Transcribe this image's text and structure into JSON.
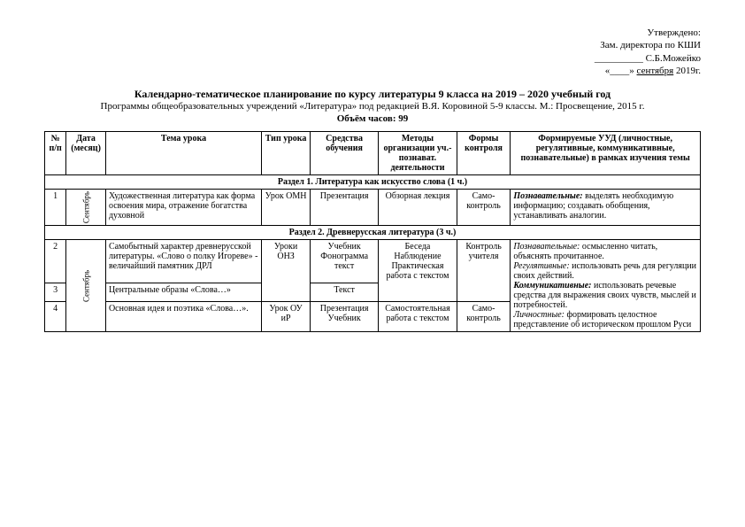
{
  "approval": {
    "l1": "Утверждено:",
    "l2": "Зам. директора по КШИ",
    "l3": "__________ С.Б.Можейко",
    "l4": "«____» сентября  2019г."
  },
  "title": {
    "main": "Календарно-тематическое планирование по курсу литературы 9 класса на 2019 – 2020 учебный год",
    "sub": "Программы общеобразовательных учреждений «Литература» под редакцией В.Я. Коровиной 5-9 классы. М.: Просвещение, 2015 г.",
    "hours": "Объём часов: 99"
  },
  "headers": {
    "num": "№ п/п",
    "date": "Дата (месяц)",
    "topic": "Тема урока",
    "type": "Тип урока",
    "means": "Средства обучения",
    "methods": "Методы организации уч.-познават. деятельности",
    "forms": "Формы контроля",
    "uud": "Формируемые УУД (личностные, регулятивные, коммуникативные, познавательные) в рамках изучения темы"
  },
  "sections": {
    "s1": "Раздел 1.  Литература как искусство слова (1 ч.)",
    "s2": "Раздел 2.  Древнерусская литература (3 ч.)"
  },
  "rows": {
    "r1": {
      "num": "1",
      "month": "Сентябрь",
      "topic": "Художественная литература как форма освоения мира, отражение богатства духовной",
      "type": "Урок ОМН",
      "means": "Презентация",
      "methods": "Обзорная лекция",
      "forms": "Само-контроль",
      "uud_label": "Познавательные:",
      "uud_text": " выделять необходимую информацию; создавать обобщения, устанавливать аналогии."
    },
    "r2": {
      "num": "2",
      "month": "Сентябрь",
      "topic": "Самобытный характер древнерусской литературы. «Слово о полку Игореве» - величайший памятник ДРЛ",
      "type": "Уроки ОНЗ",
      "means": "Учебник Фонограмма текст",
      "methods": "Беседа Наблюдение Практическая работа с текстом",
      "forms": "Контроль учителя"
    },
    "r3": {
      "num": "3",
      "topic": "Центральные образы «Слова…»",
      "type": "",
      "means": "Текст",
      "methods": "",
      "forms": ""
    },
    "r4": {
      "num": "4",
      "topic": "Основная идея и поэтика «Слова…».",
      "type": "Урок ОУ иР",
      "means": "Презентация Учебник",
      "methods": "Самостоятельная работа с текстом",
      "forms": "Само-контроль"
    },
    "uud2": {
      "p_label": "Познавательные:",
      "p_text": " осмысленно читать, объяснять прочитанное.",
      "r_label": "Регулятивные:",
      "r_text": " использовать речь для регуляции своих действий.",
      "k_label": "Коммуникативные:",
      "k_text": " использовать речевые средства для выражения своих чувств, мыслей и потребностей.",
      "l_label": "Личностные:",
      "l_text": " формировать целостное представление об историческом прошлом Руси"
    }
  }
}
